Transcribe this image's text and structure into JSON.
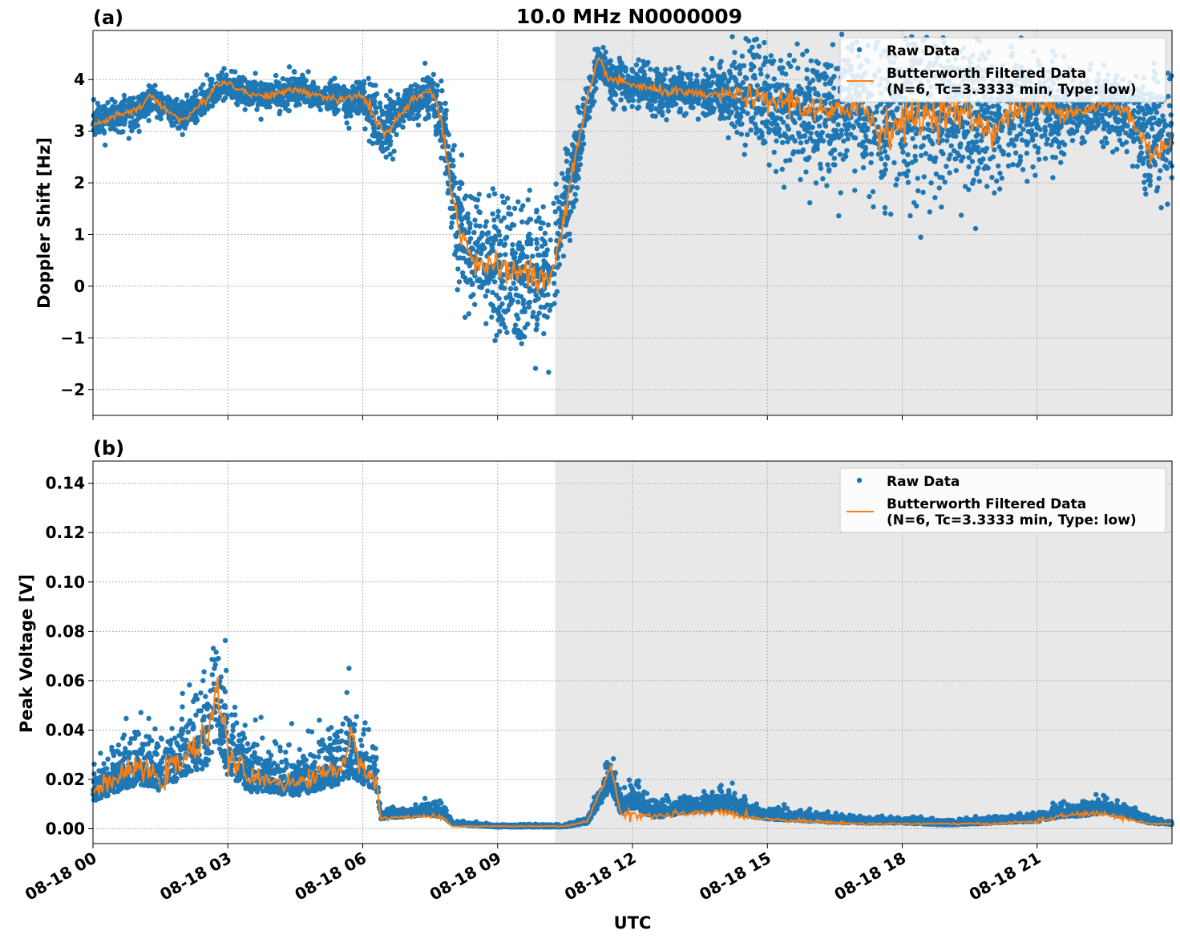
{
  "title": "10.0 MHz N0000009",
  "colors": {
    "raw": "#1f77b4",
    "filtered": "#ff7f0e",
    "shade": "#e8e8e8",
    "grid": "#b0b0b0"
  },
  "x_axis": {
    "label": "UTC",
    "range_hours": [
      0,
      24
    ],
    "ticks": [
      {
        "hour": 0,
        "label": "08-18 00"
      },
      {
        "hour": 3,
        "label": "08-18 03"
      },
      {
        "hour": 6,
        "label": "08-18 06"
      },
      {
        "hour": 9,
        "label": "08-18 09"
      },
      {
        "hour": 12,
        "label": "08-18 12"
      },
      {
        "hour": 15,
        "label": "08-18 15"
      },
      {
        "hour": 18,
        "label": "08-18 18"
      },
      {
        "hour": 21,
        "label": "08-18 21"
      }
    ]
  },
  "legend": {
    "raw": "Raw Data",
    "filtered_line1": "Butterworth Filtered Data",
    "filtered_line2": "(N=6, Tc=3.3333 min, Type: low)"
  },
  "chart_data": [
    {
      "type": "scatter",
      "panel": "(a)",
      "ylabel": "Doppler Shift [Hz]",
      "ylim": [
        -2.5,
        4.95
      ],
      "yticks": [
        -2,
        -1,
        0,
        1,
        2,
        3,
        4
      ],
      "ytick_labels": [
        "−2",
        "−1",
        "0",
        "1",
        "2",
        "3",
        "4"
      ],
      "shaded_region_hours": [
        10.28,
        24
      ],
      "grid": true,
      "legend_position": "top-right",
      "series": [
        {
          "name": "Raw Data",
          "style": "points",
          "x_hours": [
            0,
            0.5,
            1,
            1.25,
            1.5,
            2,
            2.5,
            2.75,
            3,
            3.5,
            4,
            4.5,
            5,
            5.5,
            6,
            6.25,
            6.5,
            7,
            7.5,
            7.75,
            8,
            8.25,
            8.5,
            9,
            9.5,
            10,
            10.25,
            10.5,
            11,
            11.25,
            11.5,
            12,
            12.5,
            13,
            13.5,
            14,
            14.5,
            15,
            15.5,
            16,
            16.5,
            17,
            17.5,
            18,
            18.5,
            19,
            19.5,
            20,
            20.5,
            21,
            21.5,
            22,
            22.5,
            23,
            23.5,
            24
          ],
          "center": [
            3.2,
            3.3,
            3.4,
            3.6,
            3.5,
            3.3,
            3.6,
            3.8,
            3.9,
            3.7,
            3.7,
            3.8,
            3.7,
            3.6,
            3.6,
            3.3,
            3.0,
            3.5,
            3.7,
            3.2,
            1.8,
            0.9,
            0.5,
            0.3,
            0.2,
            0.1,
            0.3,
            1.5,
            3.5,
            4.4,
            4.0,
            3.9,
            3.8,
            3.75,
            3.7,
            3.7,
            3.7,
            3.6,
            3.6,
            3.4,
            3.3,
            3.6,
            3.2,
            3.3,
            3.3,
            3.4,
            3.3,
            3.2,
            3.4,
            3.5,
            3.4,
            3.4,
            3.5,
            3.4,
            3.0,
            2.8
          ],
          "spread": [
            0.3,
            0.3,
            0.3,
            0.3,
            0.3,
            0.3,
            0.3,
            0.3,
            0.3,
            0.3,
            0.3,
            0.3,
            0.3,
            0.3,
            0.35,
            0.6,
            0.6,
            0.4,
            0.4,
            0.6,
            1.0,
            1.2,
            1.3,
            1.3,
            1.3,
            1.3,
            1.2,
            1.0,
            0.5,
            0.3,
            0.4,
            0.4,
            0.4,
            0.4,
            0.4,
            0.5,
            0.8,
            1.0,
            1.2,
            1.2,
            1.2,
            1.2,
            1.6,
            1.6,
            1.6,
            1.5,
            1.5,
            1.2,
            1.2,
            1.0,
            0.8,
            0.6,
            0.6,
            0.8,
            1.2,
            1.2
          ]
        },
        {
          "name": "Butterworth Filtered Data (N=6, Tc=3.3333 min, Type: low)",
          "style": "line",
          "x_hours": [
            0,
            0.5,
            1,
            1.25,
            1.5,
            2,
            2.5,
            2.75,
            3,
            3.5,
            4,
            4.5,
            5,
            5.5,
            6,
            6.25,
            6.5,
            7,
            7.5,
            7.75,
            8,
            8.25,
            8.5,
            9,
            9.5,
            10,
            10.25,
            10.5,
            11,
            11.25,
            11.5,
            12,
            12.5,
            13,
            13.5,
            14,
            14.5,
            15,
            15.5,
            16,
            16.5,
            17,
            17.5,
            18,
            18.5,
            19,
            19.5,
            20,
            20.5,
            21,
            21.5,
            22,
            22.5,
            23,
            23.5,
            24
          ],
          "y": [
            3.1,
            3.3,
            3.4,
            3.7,
            3.5,
            3.2,
            3.6,
            3.9,
            3.95,
            3.7,
            3.7,
            3.8,
            3.7,
            3.6,
            3.7,
            3.3,
            2.9,
            3.5,
            3.8,
            3.3,
            1.6,
            0.9,
            0.5,
            0.3,
            0.3,
            0.1,
            0.3,
            1.5,
            3.6,
            4.4,
            4.0,
            3.9,
            3.8,
            3.75,
            3.7,
            3.7,
            3.7,
            3.55,
            3.6,
            3.4,
            3.3,
            3.6,
            3.0,
            3.2,
            3.3,
            3.4,
            3.3,
            3.0,
            3.4,
            3.5,
            3.4,
            3.4,
            3.5,
            3.4,
            2.6,
            2.8
          ]
        }
      ]
    },
    {
      "type": "scatter",
      "panel": "(b)",
      "ylabel": "Peak Voltage [V]",
      "ylim": [
        -0.006,
        0.149
      ],
      "yticks": [
        0,
        0.02,
        0.04,
        0.06,
        0.08,
        0.1,
        0.12,
        0.14
      ],
      "ytick_labels": [
        "0.00",
        "0.02",
        "0.04",
        "0.06",
        "0.08",
        "0.10",
        "0.12",
        "0.14"
      ],
      "shaded_region_hours": [
        10.28,
        24
      ],
      "grid": true,
      "legend_position": "top-right",
      "series": [
        {
          "name": "Raw Data",
          "style": "points",
          "x_hours": [
            0,
            0.5,
            1,
            1.5,
            2,
            2.5,
            2.75,
            3,
            3.5,
            4,
            4.5,
            5,
            5.5,
            5.75,
            6,
            6.3,
            6.4,
            7,
            7.5,
            7.8,
            8,
            9,
            10,
            10.5,
            11,
            11.5,
            11.75,
            12,
            12.5,
            13,
            13.5,
            14,
            14.5,
            15,
            16,
            17,
            18,
            19,
            20,
            21,
            21.5,
            22,
            22.5,
            23,
            23.5,
            24
          ],
          "center": [
            0.015,
            0.02,
            0.025,
            0.022,
            0.03,
            0.035,
            0.05,
            0.03,
            0.022,
            0.02,
            0.018,
            0.022,
            0.025,
            0.03,
            0.025,
            0.02,
            0.005,
            0.006,
            0.007,
            0.006,
            0.002,
            0.001,
            0.001,
            0.001,
            0.003,
            0.02,
            0.008,
            0.012,
            0.006,
            0.008,
            0.009,
            0.01,
            0.007,
            0.005,
            0.004,
            0.003,
            0.003,
            0.002,
            0.003,
            0.004,
            0.006,
            0.007,
            0.008,
            0.006,
            0.003,
            0.002
          ],
          "spread": [
            0.012,
            0.015,
            0.02,
            0.02,
            0.025,
            0.03,
            0.04,
            0.025,
            0.02,
            0.015,
            0.015,
            0.018,
            0.02,
            0.025,
            0.02,
            0.015,
            0.003,
            0.003,
            0.004,
            0.004,
            0.001,
            0.0008,
            0.0008,
            0.0008,
            0.002,
            0.012,
            0.006,
            0.01,
            0.005,
            0.006,
            0.006,
            0.007,
            0.005,
            0.003,
            0.003,
            0.002,
            0.002,
            0.0015,
            0.002,
            0.003,
            0.004,
            0.005,
            0.005,
            0.004,
            0.002,
            0.001
          ]
        },
        {
          "name": "Butterworth Filtered Data (N=6, Tc=3.3333 min, Type: low)",
          "style": "line",
          "x_hours": [
            0,
            0.5,
            1,
            1.5,
            2,
            2.5,
            2.75,
            3,
            3.5,
            4,
            4.5,
            5,
            5.5,
            5.75,
            6,
            6.3,
            6.4,
            7,
            7.5,
            7.8,
            8,
            9,
            10,
            10.5,
            11,
            11.5,
            11.75,
            12,
            12.5,
            13,
            13.5,
            14,
            14.5,
            15,
            16,
            17,
            18,
            19,
            20,
            21,
            21.5,
            22,
            22.5,
            23,
            23.5,
            24
          ],
          "y": [
            0.015,
            0.02,
            0.025,
            0.02,
            0.028,
            0.035,
            0.06,
            0.03,
            0.02,
            0.02,
            0.018,
            0.022,
            0.025,
            0.035,
            0.025,
            0.02,
            0.004,
            0.005,
            0.005,
            0.004,
            0.001,
            0.001,
            0.001,
            0.001,
            0.003,
            0.025,
            0.006,
            0.006,
            0.005,
            0.006,
            0.006,
            0.007,
            0.005,
            0.004,
            0.003,
            0.002,
            0.002,
            0.002,
            0.002,
            0.003,
            0.005,
            0.006,
            0.006,
            0.004,
            0.002,
            0.002
          ]
        }
      ]
    }
  ]
}
